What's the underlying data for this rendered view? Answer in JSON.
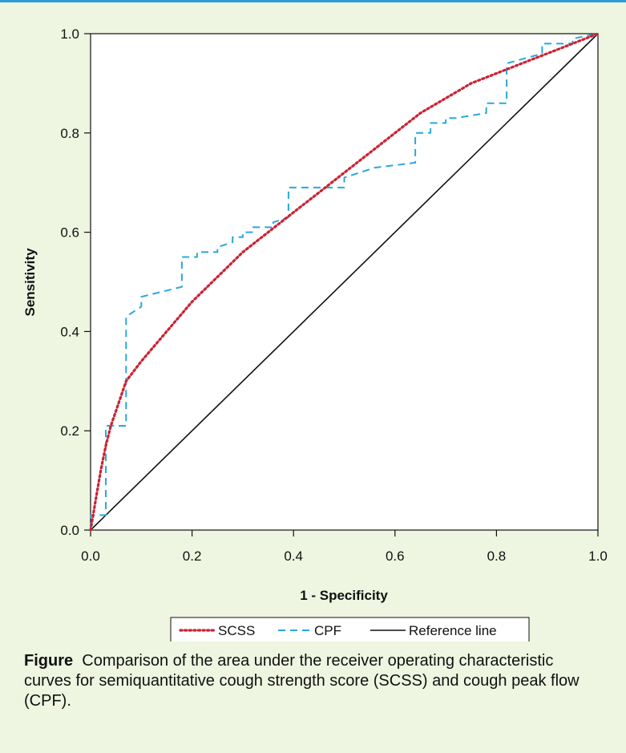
{
  "chart_data": {
    "type": "line",
    "xlabel": "1 - Specificity",
    "ylabel": "Sensitivity",
    "xlim": [
      0,
      1
    ],
    "ylim": [
      0,
      1
    ],
    "xticks": [
      "0.0",
      "0.2",
      "0.4",
      "0.6",
      "0.8",
      "1.0"
    ],
    "yticks": [
      "0.0",
      "0.2",
      "0.4",
      "0.6",
      "0.8",
      "1.0"
    ],
    "grid": false,
    "legend_position": "bottom-center",
    "series": [
      {
        "name": "SCSS",
        "style": "dotted",
        "color": "#cc2233",
        "x": [
          0.0,
          0.01,
          0.02,
          0.03,
          0.04,
          0.05,
          0.06,
          0.07,
          0.1,
          0.15,
          0.2,
          0.25,
          0.3,
          0.35,
          0.4,
          0.45,
          0.5,
          0.55,
          0.6,
          0.65,
          0.7,
          0.75,
          0.8,
          0.85,
          0.9,
          0.95,
          1.0
        ],
        "y": [
          0.0,
          0.06,
          0.12,
          0.17,
          0.21,
          0.24,
          0.27,
          0.3,
          0.34,
          0.4,
          0.46,
          0.51,
          0.56,
          0.6,
          0.64,
          0.68,
          0.72,
          0.76,
          0.8,
          0.84,
          0.87,
          0.9,
          0.92,
          0.94,
          0.96,
          0.98,
          1.0
        ]
      },
      {
        "name": "CPF",
        "style": "dashed",
        "color": "#2aa8dc",
        "x": [
          0.0,
          0.0,
          0.03,
          0.03,
          0.04,
          0.04,
          0.07,
          0.07,
          0.1,
          0.1,
          0.18,
          0.18,
          0.21,
          0.21,
          0.25,
          0.25,
          0.28,
          0.28,
          0.3,
          0.3,
          0.32,
          0.32,
          0.36,
          0.36,
          0.39,
          0.39,
          0.5,
          0.5,
          0.56,
          0.64,
          0.64,
          0.67,
          0.67,
          0.7,
          0.7,
          0.72,
          0.78,
          0.78,
          0.82,
          0.82,
          0.89,
          0.89,
          0.95,
          0.95,
          1.0
        ],
        "y": [
          0.0,
          0.03,
          0.03,
          0.21,
          0.21,
          0.21,
          0.21,
          0.43,
          0.45,
          0.47,
          0.49,
          0.55,
          0.55,
          0.56,
          0.56,
          0.57,
          0.58,
          0.59,
          0.59,
          0.6,
          0.6,
          0.61,
          0.61,
          0.62,
          0.63,
          0.69,
          0.69,
          0.71,
          0.73,
          0.74,
          0.8,
          0.8,
          0.82,
          0.82,
          0.83,
          0.83,
          0.84,
          0.86,
          0.86,
          0.94,
          0.96,
          0.98,
          0.98,
          0.99,
          1.0
        ]
      },
      {
        "name": "Reference line",
        "style": "solid",
        "color": "#111111",
        "x": [
          0,
          1
        ],
        "y": [
          0,
          1
        ]
      }
    ]
  },
  "caption": {
    "label": "Figure",
    "text": "Comparison of the area under the receiver operating characteristic curves for semiquantitative cough strength score (SCSS) and cough peak flow (CPF)."
  }
}
